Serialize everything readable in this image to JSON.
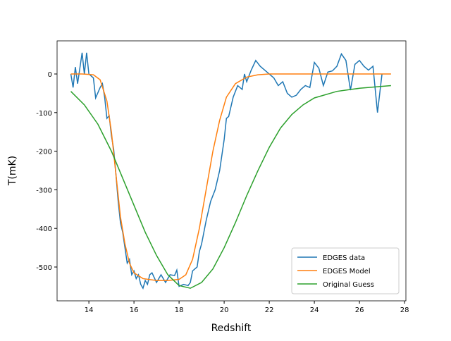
{
  "chart_data": {
    "type": "line",
    "xlabel": "Redshift",
    "ylabel": "T(mK)",
    "xlim": [
      12.59,
      28.06
    ],
    "ylim": [
      -587.6,
      85.8
    ],
    "xticks": [
      14,
      16,
      18,
      20,
      22,
      24,
      26,
      28
    ],
    "yticks": [
      0,
      -100,
      -200,
      -300,
      -400,
      -500
    ],
    "legend": "lower right",
    "series": [
      {
        "name": "EDGES data",
        "color": "#1f77b4",
        "x": [
          13.2,
          13.3,
          13.4,
          13.5,
          13.6,
          13.7,
          13.8,
          13.9,
          14.0,
          14.1,
          14.2,
          14.3,
          14.5,
          14.6,
          14.7,
          14.8,
          14.9,
          15.0,
          15.1,
          15.2,
          15.3,
          15.4,
          15.5,
          15.6,
          15.7,
          15.8,
          15.9,
          16.0,
          16.1,
          16.2,
          16.3,
          16.4,
          16.5,
          16.6,
          16.7,
          16.8,
          17.0,
          17.2,
          17.4,
          17.6,
          17.8,
          17.9,
          18.0,
          18.2,
          18.4,
          18.5,
          18.6,
          18.8,
          18.9,
          19.0,
          19.2,
          19.4,
          19.6,
          19.8,
          20.0,
          20.1,
          20.2,
          20.4,
          20.6,
          20.8,
          20.9,
          21.0,
          21.2,
          21.4,
          21.6,
          21.8,
          22.0,
          22.2,
          22.4,
          22.6,
          22.8,
          23.0,
          23.2,
          23.4,
          23.6,
          23.8,
          24.0,
          24.2,
          24.4,
          24.6,
          24.8,
          25.0,
          25.2,
          25.4,
          25.6,
          25.8,
          26.0,
          26.2,
          26.4,
          26.6,
          26.8,
          27.0
        ],
        "values": [
          0,
          -35,
          18,
          -25,
          15,
          55,
          0,
          55,
          0,
          -5,
          -10,
          -62,
          -35,
          -25,
          -60,
          -115,
          -108,
          -160,
          -195,
          -260,
          -330,
          -385,
          -410,
          -450,
          -490,
          -480,
          -520,
          -510,
          -530,
          -520,
          -545,
          -555,
          -535,
          -545,
          -520,
          -515,
          -540,
          -520,
          -540,
          -520,
          -522,
          -508,
          -550,
          -545,
          -548,
          -540,
          -510,
          -500,
          -460,
          -440,
          -380,
          -330,
          -300,
          -250,
          -170,
          -115,
          -110,
          -60,
          -30,
          -40,
          0,
          -20,
          10,
          35,
          20,
          10,
          0,
          -10,
          -30,
          -20,
          -50,
          -60,
          -55,
          -40,
          -30,
          -35,
          30,
          15,
          -30,
          5,
          8,
          20,
          52,
          35,
          -42,
          25,
          35,
          20,
          10,
          20,
          -100,
          0
        ]
      },
      {
        "name": "EDGES Model",
        "color": "#ff7f0e",
        "x": [
          13.2,
          13.7,
          14.2,
          14.5,
          14.8,
          15.0,
          15.2,
          15.4,
          15.6,
          15.8,
          16.0,
          16.4,
          17.0,
          17.5,
          18.0,
          18.3,
          18.6,
          18.9,
          19.2,
          19.5,
          19.8,
          20.1,
          20.5,
          21.0,
          21.5,
          22.0,
          23.0,
          27.4
        ],
        "values": [
          0,
          0,
          -2,
          -15,
          -70,
          -150,
          -260,
          -370,
          -440,
          -490,
          -515,
          -530,
          -535,
          -535,
          -532,
          -520,
          -480,
          -400,
          -300,
          -200,
          -120,
          -60,
          -25,
          -8,
          -2,
          0,
          0,
          0
        ]
      },
      {
        "name": "Original Guess",
        "color": "#2ca02c",
        "x": [
          13.2,
          13.8,
          14.4,
          15.0,
          15.5,
          16.0,
          16.5,
          17.0,
          17.5,
          18.0,
          18.5,
          19.0,
          19.5,
          20.0,
          20.5,
          21.0,
          21.5,
          22.0,
          22.5,
          23.0,
          23.5,
          24.0,
          25.0,
          26.0,
          27.4
        ],
        "values": [
          -45,
          -80,
          -130,
          -200,
          -270,
          -340,
          -410,
          -470,
          -520,
          -548,
          -555,
          -540,
          -505,
          -450,
          -385,
          -315,
          -250,
          -190,
          -140,
          -105,
          -80,
          -62,
          -45,
          -37,
          -30
        ]
      }
    ]
  }
}
